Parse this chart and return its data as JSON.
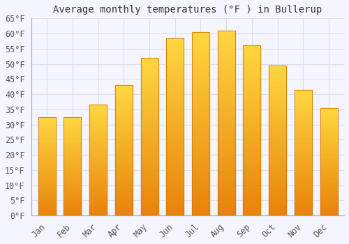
{
  "title": "Average monthly temperatures (°F ) in Bullerup",
  "months": [
    "Jan",
    "Feb",
    "Mar",
    "Apr",
    "May",
    "Jun",
    "Jul",
    "Aug",
    "Sep",
    "Oct",
    "Nov",
    "Dec"
  ],
  "values": [
    32.5,
    32.5,
    36.5,
    43.0,
    52.0,
    58.5,
    60.5,
    61.0,
    56.0,
    49.5,
    41.5,
    35.5
  ],
  "bar_color_bottom": "#E8820A",
  "bar_color_top": "#FFD740",
  "bar_edge_color": "#D4780A",
  "ylim": [
    0,
    65
  ],
  "yticks": [
    0,
    5,
    10,
    15,
    20,
    25,
    30,
    35,
    40,
    45,
    50,
    55,
    60,
    65
  ],
  "ytick_labels": [
    "0°F",
    "5°F",
    "10°F",
    "15°F",
    "20°F",
    "25°F",
    "30°F",
    "35°F",
    "40°F",
    "45°F",
    "50°F",
    "55°F",
    "60°F",
    "65°F"
  ],
  "background_color": "#f5f5ff",
  "plot_bg_color": "#f5f5ff",
  "grid_color": "#ddddee",
  "title_fontsize": 10,
  "tick_fontsize": 8.5,
  "font_family": "monospace"
}
